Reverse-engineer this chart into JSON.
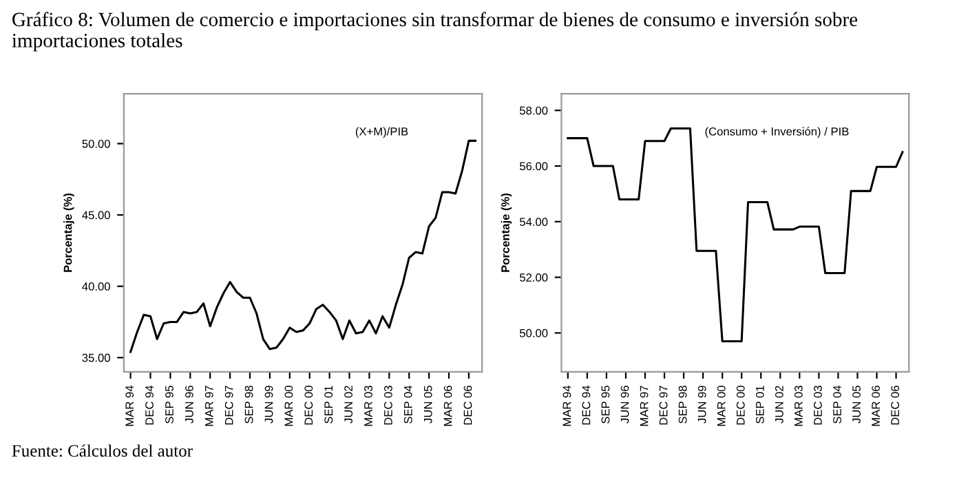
{
  "chart_data": [
    {
      "type": "line",
      "title": "Gráfico 8: Volumen de comercio e importaciones sin transformar de bienes de consumo e inversión sobre importaciones totales",
      "ylabel": "Porcentaje (%)",
      "categories": [
        "MAR 94",
        null,
        null,
        "DEC 94",
        null,
        null,
        "SEP 95",
        null,
        null,
        "JUN 96",
        null,
        null,
        "MAR 97",
        null,
        null,
        "DEC 97",
        null,
        null,
        "SEP 98",
        null,
        null,
        "JUN 99",
        null,
        null,
        "MAR 00",
        null,
        null,
        "DEC 00",
        null,
        null,
        "SEP 01",
        null,
        null,
        "JUN 02",
        null,
        null,
        "MAR 03",
        null,
        null,
        "DEC 03",
        null,
        null,
        "SEP 04",
        null,
        null,
        "JUN 05",
        null,
        null,
        "MAR 06",
        null,
        null,
        "DEC 06",
        null
      ],
      "series": [
        {
          "color": "#000000",
          "values": [
            35.4,
            36.8,
            38.0,
            37.9,
            36.3,
            37.4,
            37.5,
            37.5,
            38.2,
            38.1,
            38.2,
            38.8,
            37.2,
            38.5,
            39.5,
            40.3,
            39.6,
            39.2,
            39.2,
            38.1,
            36.3,
            35.6,
            35.7,
            36.3,
            37.1,
            36.8,
            36.9,
            37.4,
            38.4,
            38.7,
            38.2,
            37.6,
            36.3,
            37.6,
            36.7,
            36.8,
            37.6,
            36.7,
            37.9,
            37.1,
            38.7,
            40.1,
            42.0,
            42.4,
            42.3,
            44.2,
            44.8,
            46.6,
            46.6,
            46.5,
            48.1,
            50.2,
            50.2
          ]
        }
      ],
      "ylim": [
        34,
        53.5
      ],
      "yticks": [
        {
          "value": 35,
          "label": "35.00"
        },
        {
          "value": 40,
          "label": "40.00"
        },
        {
          "value": 45,
          "label": "45.00"
        },
        {
          "value": 50,
          "label": "50.00"
        }
      ],
      "annotations": [
        "(X+M)/PIB",
        "Fuente: Cálculos del autor"
      ],
      "grid": false,
      "legend": false
    },
    {
      "type": "line",
      "ylabel": "Porcentaje (%)",
      "categories": [
        "MAR 94",
        null,
        null,
        "DEC 94",
        null,
        null,
        "SEP 95",
        null,
        null,
        "JUN 96",
        null,
        null,
        "MAR 97",
        null,
        null,
        "DEC 97",
        null,
        null,
        "SEP 98",
        null,
        null,
        "JUN 99",
        null,
        null,
        "MAR 00",
        null,
        null,
        "DEC 00",
        null,
        null,
        "SEP 01",
        null,
        null,
        "JUN 02",
        null,
        null,
        "MAR 03",
        null,
        null,
        "DEC 03",
        null,
        null,
        "SEP 04",
        null,
        null,
        "JUN 05",
        null,
        null,
        "MAR 06",
        null,
        null,
        "DEC 06",
        null
      ],
      "series": [
        {
          "color": "#000000",
          "values": [
            57.0,
            57.0,
            57.0,
            57.0,
            56.0,
            56.0,
            56.0,
            56.0,
            54.8,
            54.8,
            54.8,
            54.8,
            56.9,
            56.9,
            56.9,
            56.9,
            57.35,
            57.35,
            57.35,
            57.35,
            52.95,
            52.95,
            52.95,
            52.95,
            49.7,
            49.7,
            49.7,
            49.7,
            54.7,
            54.7,
            54.7,
            54.7,
            53.72,
            53.72,
            53.72,
            53.72,
            53.82,
            53.82,
            53.82,
            53.82,
            52.15,
            52.15,
            52.15,
            52.15,
            55.1,
            55.1,
            55.1,
            55.1,
            55.97,
            55.97,
            55.97,
            55.97,
            56.5
          ]
        }
      ],
      "ylim": [
        48.6,
        58.6
      ],
      "yticks": [
        {
          "value": 50,
          "label": "50.00"
        },
        {
          "value": 52,
          "label": "52.00"
        },
        {
          "value": 54,
          "label": "54.00"
        },
        {
          "value": 56,
          "label": "56.00"
        },
        {
          "value": 58,
          "label": "58.00"
        }
      ],
      "annotations": [
        "(Consumo + Inversión) / PIB"
      ],
      "grid": false,
      "legend": false
    }
  ]
}
